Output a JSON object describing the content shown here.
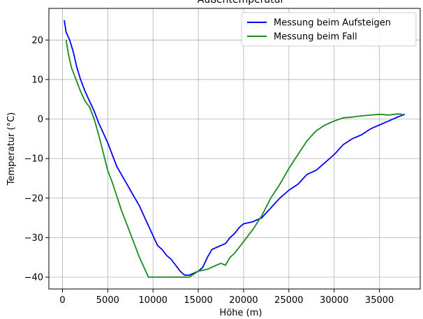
{
  "chart_data": {
    "type": "line",
    "title": "Außentemperatur",
    "xlabel": "Höhe (m)",
    "ylabel": "Temperatur (°C)",
    "xlim": [
      -1500,
      39500
    ],
    "ylim": [
      -43,
      28
    ],
    "xticks": [
      0,
      5000,
      10000,
      15000,
      20000,
      25000,
      30000,
      35000
    ],
    "xtick_labels": [
      "0",
      "5000",
      "10000",
      "15000",
      "20000",
      "25000",
      "30000",
      "35000"
    ],
    "yticks": [
      -40,
      -30,
      -20,
      -10,
      0,
      10,
      20
    ],
    "ytick_labels": [
      "−40",
      "−30",
      "−20",
      "−10",
      "0",
      "10",
      "20"
    ],
    "grid": true,
    "legend_position": "top-right",
    "series": [
      {
        "name": "Messung beim Aufsteigen",
        "color": "#0000ff",
        "points": [
          [
            200,
            25
          ],
          [
            400,
            22
          ],
          [
            800,
            20
          ],
          [
            1200,
            17
          ],
          [
            1600,
            13
          ],
          [
            2000,
            10
          ],
          [
            2500,
            7
          ],
          [
            3000,
            4.5
          ],
          [
            3500,
            2
          ],
          [
            4000,
            -1
          ],
          [
            4500,
            -3.5
          ],
          [
            5000,
            -6
          ],
          [
            5500,
            -9
          ],
          [
            6000,
            -12
          ],
          [
            6500,
            -14
          ],
          [
            7000,
            -16
          ],
          [
            7500,
            -18
          ],
          [
            8000,
            -20
          ],
          [
            8500,
            -22
          ],
          [
            9000,
            -24.5
          ],
          [
            9500,
            -27
          ],
          [
            10000,
            -29.5
          ],
          [
            10500,
            -32
          ],
          [
            11000,
            -33
          ],
          [
            11500,
            -34.5
          ],
          [
            12000,
            -35.5
          ],
          [
            12500,
            -37
          ],
          [
            13000,
            -38.5
          ],
          [
            13500,
            -39.5
          ],
          [
            14000,
            -39.5
          ],
          [
            14500,
            -39
          ],
          [
            15000,
            -38.5
          ],
          [
            15500,
            -37.5
          ],
          [
            16000,
            -35
          ],
          [
            16500,
            -33
          ],
          [
            17000,
            -32.5
          ],
          [
            17500,
            -32
          ],
          [
            18000,
            -31.5
          ],
          [
            18500,
            -30
          ],
          [
            19000,
            -29
          ],
          [
            19500,
            -27.5
          ],
          [
            20000,
            -26.5
          ],
          [
            21000,
            -26
          ],
          [
            22000,
            -25
          ],
          [
            23000,
            -22.5
          ],
          [
            24000,
            -20
          ],
          [
            25000,
            -18
          ],
          [
            26000,
            -16.5
          ],
          [
            27000,
            -14
          ],
          [
            28000,
            -13
          ],
          [
            29000,
            -11
          ],
          [
            30000,
            -9
          ],
          [
            31000,
            -6.5
          ],
          [
            32000,
            -5
          ],
          [
            33000,
            -4
          ],
          [
            34000,
            -2.5
          ],
          [
            35000,
            -1.5
          ],
          [
            36000,
            -0.5
          ],
          [
            37000,
            0.5
          ],
          [
            37800,
            1.2
          ]
        ]
      },
      {
        "name": "Messung beim Fall",
        "color": "#1a8c1a",
        "points": [
          [
            400,
            20
          ],
          [
            700,
            16
          ],
          [
            1000,
            13
          ],
          [
            1500,
            10
          ],
          [
            2000,
            7
          ],
          [
            2500,
            4.5
          ],
          [
            3000,
            3
          ],
          [
            3500,
            0
          ],
          [
            4000,
            -4
          ],
          [
            4500,
            -8.5
          ],
          [
            5000,
            -13
          ],
          [
            5500,
            -16
          ],
          [
            6000,
            -19.5
          ],
          [
            6500,
            -23
          ],
          [
            7000,
            -26
          ],
          [
            7500,
            -29
          ],
          [
            8000,
            -32
          ],
          [
            8500,
            -35
          ],
          [
            9000,
            -37.5
          ],
          [
            9500,
            -40
          ],
          [
            10000,
            -40
          ],
          [
            11000,
            -40
          ],
          [
            12000,
            -40
          ],
          [
            13000,
            -40
          ],
          [
            14000,
            -40
          ],
          [
            15000,
            -38.5
          ],
          [
            16000,
            -38
          ],
          [
            17000,
            -37
          ],
          [
            17500,
            -36.5
          ],
          [
            18000,
            -37
          ],
          [
            18500,
            -35
          ],
          [
            19000,
            -34
          ],
          [
            20000,
            -31
          ],
          [
            21000,
            -28
          ],
          [
            22000,
            -24.5
          ],
          [
            23000,
            -20
          ],
          [
            24000,
            -16.5
          ],
          [
            25000,
            -12.5
          ],
          [
            26000,
            -9
          ],
          [
            27000,
            -5.5
          ],
          [
            28000,
            -3
          ],
          [
            29000,
            -1.5
          ],
          [
            30000,
            -0.5
          ],
          [
            31000,
            0.3
          ],
          [
            32000,
            0.5
          ],
          [
            33000,
            0.8
          ],
          [
            34000,
            1
          ],
          [
            35000,
            1.2
          ],
          [
            36000,
            1
          ],
          [
            37000,
            1.3
          ],
          [
            37500,
            1.2
          ]
        ]
      }
    ]
  }
}
